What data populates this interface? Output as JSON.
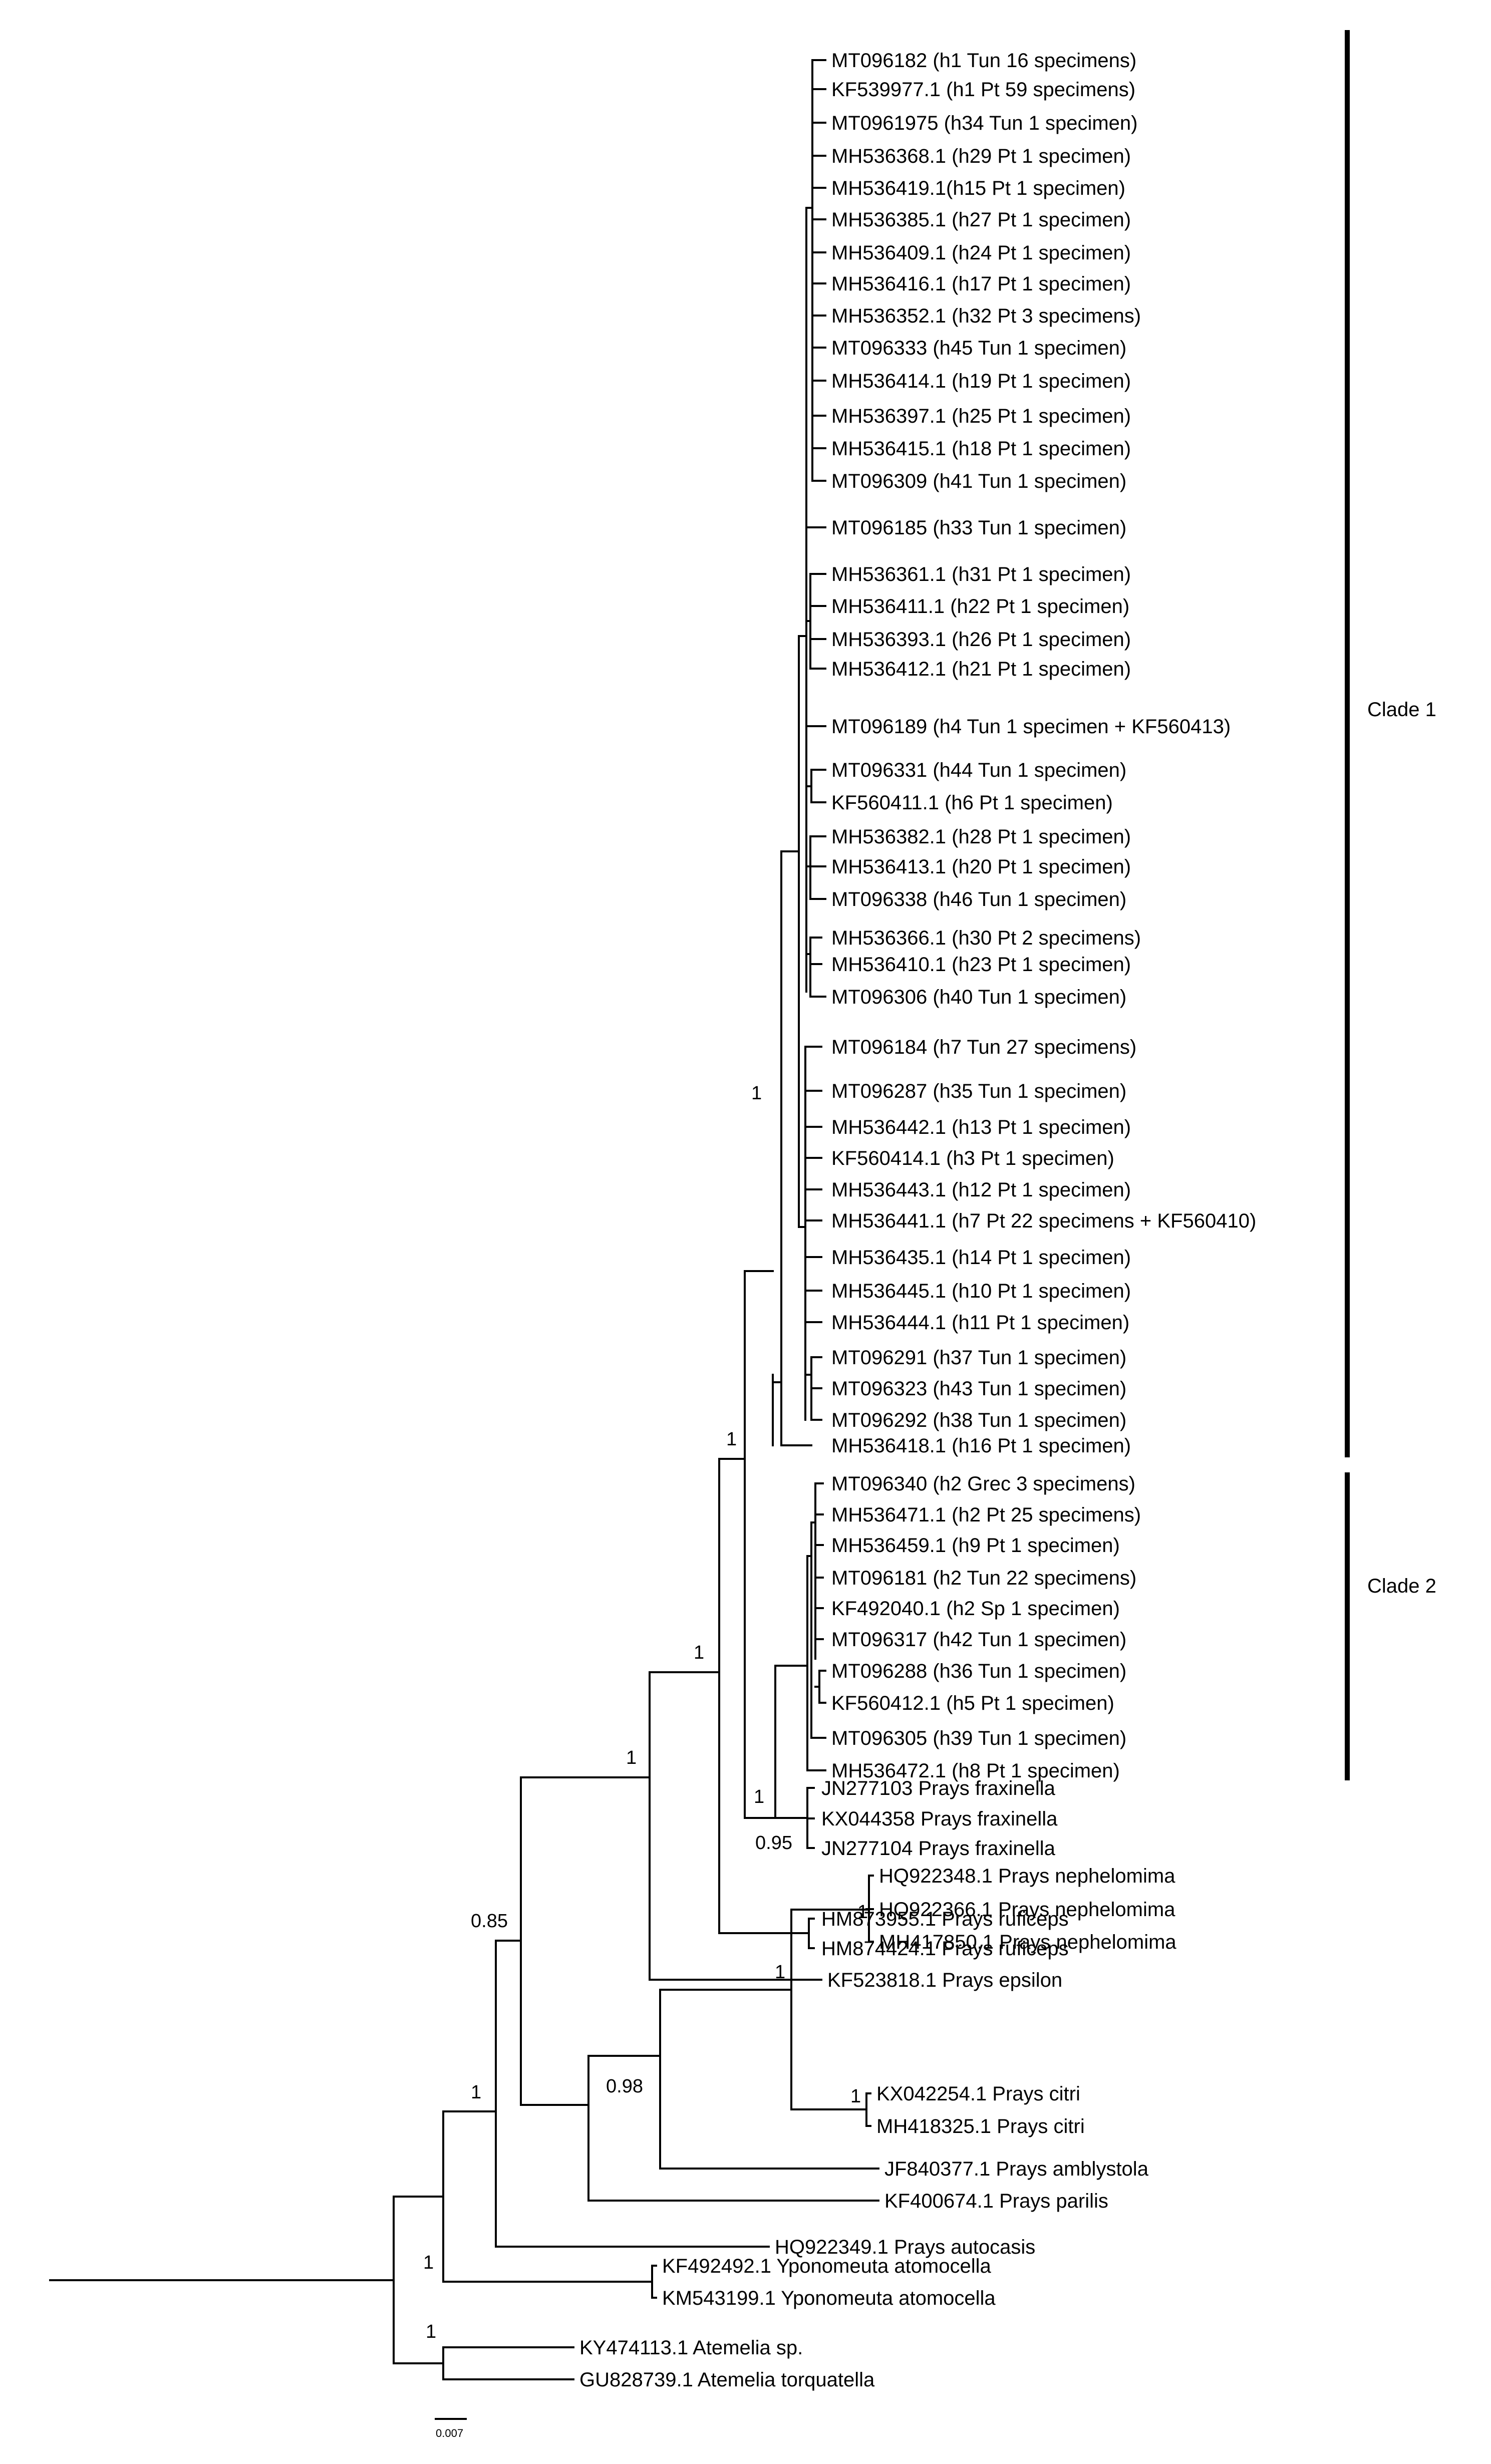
{
  "figure": {
    "type": "phylogenetic-tree",
    "scale_bar_label": "0.007"
  },
  "leaves": [
    {
      "id": "L1",
      "label": "MT096182 (h1 Tun 16 specimens)"
    },
    {
      "id": "L2",
      "label": "KF539977.1 (h1 Pt 59 specimens)"
    },
    {
      "id": "L3",
      "label": "MT0961975 (h34 Tun 1 specimen)"
    },
    {
      "id": "L4",
      "label": "MH536368.1 (h29 Pt 1 specimen)"
    },
    {
      "id": "L5",
      "label": "MH536419.1(h15 Pt 1 specimen)"
    },
    {
      "id": "L6",
      "label": "MH536385.1 (h27 Pt 1 specimen)"
    },
    {
      "id": "L7",
      "label": "MH536409.1 (h24 Pt 1 specimen)"
    },
    {
      "id": "L8",
      "label": "MH536416.1 (h17 Pt 1 specimen)"
    },
    {
      "id": "L9",
      "label": "MH536352.1 (h32 Pt 3 specimens)"
    },
    {
      "id": "L10",
      "label": "MT096333 (h45 Tun 1 specimen)"
    },
    {
      "id": "L11",
      "label": "MH536414.1 (h19 Pt 1 specimen)"
    },
    {
      "id": "L12",
      "label": "MH536397.1 (h25 Pt 1 specimen)"
    },
    {
      "id": "L13",
      "label": "MH536415.1 (h18 Pt 1 specimen)"
    },
    {
      "id": "L14",
      "label": "MT096309 (h41 Tun 1 specimen)"
    },
    {
      "id": "L15",
      "label": "MT096185 (h33 Tun 1 specimen)"
    },
    {
      "id": "L16",
      "label": "MH536361.1 (h31 Pt 1 specimen)"
    },
    {
      "id": "L17",
      "label": "MH536411.1 (h22 Pt 1 specimen)"
    },
    {
      "id": "L18",
      "label": "MH536393.1 (h26 Pt 1 specimen)"
    },
    {
      "id": "L19",
      "label": "MH536412.1 (h21 Pt 1 specimen)"
    },
    {
      "id": "L20",
      "label": "MT096189 (h4 Tun 1 specimen + KF560413)"
    },
    {
      "id": "L21",
      "label": "MT096331 (h44 Tun 1 specimen)"
    },
    {
      "id": "L22",
      "label": "KF560411.1 (h6 Pt 1 specimen)"
    },
    {
      "id": "L23",
      "label": "MH536382.1 (h28 Pt 1 specimen)"
    },
    {
      "id": "L24",
      "label": "MH536413.1 (h20 Pt 1 specimen)"
    },
    {
      "id": "L25",
      "label": "MT096338 (h46 Tun 1 specimen)"
    },
    {
      "id": "L26",
      "label": "MH536366.1 (h30 Pt 2 specimens)"
    },
    {
      "id": "L27",
      "label": "MH536410.1 (h23 Pt 1 specimen)"
    },
    {
      "id": "L28",
      "label": "MT096306 (h40 Tun 1 specimen)"
    },
    {
      "id": "L29",
      "label": "MT096184 (h7 Tun 27 specimens)"
    },
    {
      "id": "L30",
      "label": "MT096287 (h35 Tun 1 specimen)"
    },
    {
      "id": "L31",
      "label": "MH536442.1 (h13 Pt 1 specimen)"
    },
    {
      "id": "L32",
      "label": "KF560414.1 (h3 Pt 1 specimen)"
    },
    {
      "id": "L33",
      "label": "MH536443.1 (h12 Pt 1 specimen)"
    },
    {
      "id": "L34",
      "label": "MH536441.1 (h7 Pt 22 specimens + KF560410)"
    },
    {
      "id": "L35",
      "label": "MH536435.1 (h14 Pt 1 specimen)"
    },
    {
      "id": "L36",
      "label": "MH536445.1 (h10 Pt 1 specimen)"
    },
    {
      "id": "L37",
      "label": "MH536444.1 (h11 Pt 1 specimen)"
    },
    {
      "id": "L38",
      "label": "MT096291 (h37 Tun 1 specimen)"
    },
    {
      "id": "L39",
      "label": "MT096323 (h43 Tun 1 specimen)"
    },
    {
      "id": "L40",
      "label": "MT096292 (h38 Tun 1 specimen)"
    },
    {
      "id": "L41",
      "label": "MH536418.1 (h16 Pt 1 specimen)"
    },
    {
      "id": "L42",
      "label": "MT096340 (h2 Grec 3 specimens)"
    },
    {
      "id": "L43",
      "label": "MH536471.1 (h2 Pt 25 specimens)"
    },
    {
      "id": "L44",
      "label": "MH536459.1 (h9 Pt 1 specimen)"
    },
    {
      "id": "L45",
      "label": "MT096181 (h2 Tun 22 specimens)"
    },
    {
      "id": "L46",
      "label": "KF492040.1 (h2 Sp 1 specimen)"
    },
    {
      "id": "L47",
      "label": "MT096317 (h42 Tun 1 specimen)"
    },
    {
      "id": "L48",
      "label": "MT096288 (h36 Tun 1 specimen)"
    },
    {
      "id": "L49",
      "label": "KF560412.1 (h5 Pt 1 specimen)"
    },
    {
      "id": "L50",
      "label": "MT096305 (h39 Tun 1 specimen)"
    },
    {
      "id": "L51",
      "label": "MH536472.1 (h8 Pt 1 specimen)"
    },
    {
      "id": "L52",
      "label": "JN277103 Prays fraxinella"
    },
    {
      "id": "L53",
      "label": "KX044358 Prays fraxinella"
    },
    {
      "id": "L54",
      "label": "JN277104 Prays fraxinella"
    },
    {
      "id": "L55",
      "label": "HM873955.1 Prays ruficeps"
    },
    {
      "id": "L56",
      "label": "HM874424.1 Prays ruficeps"
    },
    {
      "id": "L57",
      "label": "KF523818.1 Prays epsilon"
    },
    {
      "id": "L58",
      "label": "HQ922348.1 Prays nephelomima"
    },
    {
      "id": "L59",
      "label": "HQ922366.1 Prays nephelomima"
    },
    {
      "id": "L60",
      "label": "MH417850.1 Prays nephelomima"
    },
    {
      "id": "L61",
      "label": "KX042254.1 Prays citri"
    },
    {
      "id": "L62",
      "label": "MH418325.1 Prays citri"
    },
    {
      "id": "L63",
      "label": "JF840377.1 Prays amblystola"
    },
    {
      "id": "L64",
      "label": "KF400674.1 Prays parilis"
    },
    {
      "id": "L65",
      "label": "HQ922349.1 Prays autocasis"
    },
    {
      "id": "L66",
      "label": "KF492492.1 Yponomeuta atomocella"
    },
    {
      "id": "L67",
      "label": "KM543199.1 Yponomeuta atomocella"
    },
    {
      "id": "L68",
      "label": "KY474113.1 Atemelia sp."
    },
    {
      "id": "L69",
      "label": "GU828739.1 Atemelia torquatella"
    }
  ],
  "support_values": [
    {
      "id": "S1",
      "value": "1"
    },
    {
      "id": "S2",
      "value": "1"
    },
    {
      "id": "S3",
      "value": "1"
    },
    {
      "id": "S4",
      "value": "1"
    },
    {
      "id": "S5",
      "value": "0.95"
    },
    {
      "id": "S6",
      "value": "1"
    },
    {
      "id": "S7",
      "value": "0.85"
    },
    {
      "id": "S8",
      "value": "1"
    },
    {
      "id": "S9",
      "value": "1"
    },
    {
      "id": "S10",
      "value": "1"
    },
    {
      "id": "S11",
      "value": "0.98"
    },
    {
      "id": "S12",
      "value": "1"
    },
    {
      "id": "S13",
      "value": "1"
    }
  ],
  "clades": [
    {
      "id": "C1",
      "label": "Clade 1"
    },
    {
      "id": "C2",
      "label": "Clade 2"
    }
  ]
}
